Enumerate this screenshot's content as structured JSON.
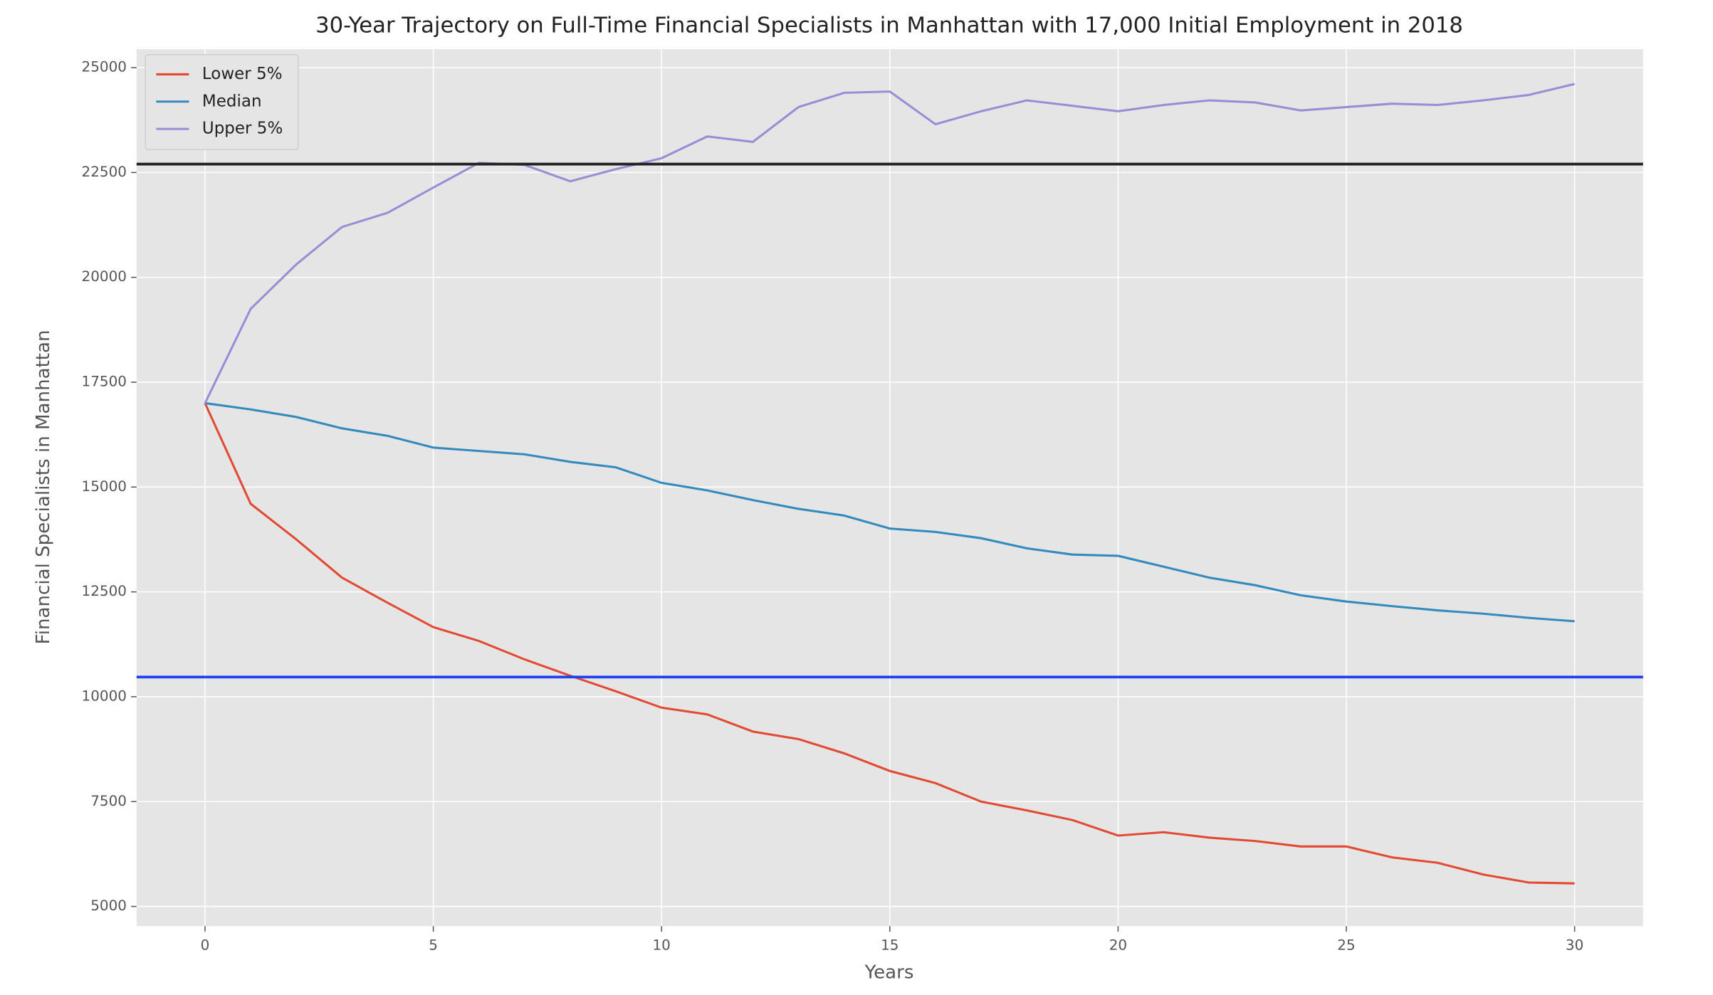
{
  "chart_data": {
    "type": "line",
    "title": "30-Year Trajectory on Full-Time Financial Specialists in Manhattan with 17,000 Initial Employment in 2018",
    "xlabel": "Years",
    "ylabel": "Financial Specialists in Manhattan",
    "x": [
      0,
      1,
      2,
      3,
      4,
      5,
      6,
      7,
      8,
      9,
      10,
      11,
      12,
      13,
      14,
      15,
      16,
      17,
      18,
      19,
      20,
      21,
      22,
      23,
      24,
      25,
      26,
      27,
      28,
      29,
      30
    ],
    "series": [
      {
        "name": "Lower 5%",
        "color": "#e24a33",
        "values": [
          17000,
          14600,
          13750,
          12840,
          12240,
          11660,
          11330,
          10890,
          10500,
          10130,
          9740,
          9580,
          9170,
          8990,
          8650,
          8230,
          7940,
          7500,
          7290,
          7060,
          6690,
          6770,
          6640,
          6560,
          6430,
          6430,
          6170,
          6040,
          5760,
          5570,
          5550
        ]
      },
      {
        "name": "Median",
        "color": "#348abd",
        "values": [
          17000,
          16850,
          16670,
          16400,
          16220,
          15940,
          15860,
          15780,
          15600,
          15470,
          15100,
          14920,
          14690,
          14480,
          14320,
          14010,
          13930,
          13780,
          13540,
          13390,
          13360,
          13100,
          12840,
          12660,
          12420,
          12270,
          12160,
          12060,
          11980,
          11880,
          11800
        ]
      },
      {
        "name": "Upper 5%",
        "color": "#988ed5",
        "values": [
          17000,
          19250,
          20310,
          21200,
          21540,
          22140,
          22730,
          22680,
          22290,
          22580,
          22840,
          23360,
          23230,
          24060,
          24400,
          24430,
          23650,
          23960,
          24220,
          24090,
          23960,
          24110,
          24220,
          24170,
          23980,
          24060,
          24140,
          24110,
          24220,
          24350,
          24610
        ]
      }
    ],
    "reference_lines": [
      {
        "value": 22700,
        "color": "#222222"
      },
      {
        "value": 10470,
        "color": "#1f3ff0"
      }
    ],
    "xlim": [
      -1.5,
      31.5
    ],
    "ylim": [
      4530,
      25440
    ],
    "xticks": [
      0,
      5,
      10,
      15,
      20,
      25,
      30
    ],
    "yticks": [
      5000,
      7500,
      10000,
      12500,
      15000,
      17500,
      20000,
      22500,
      25000
    ],
    "grid": true,
    "legend": "upper-left"
  }
}
